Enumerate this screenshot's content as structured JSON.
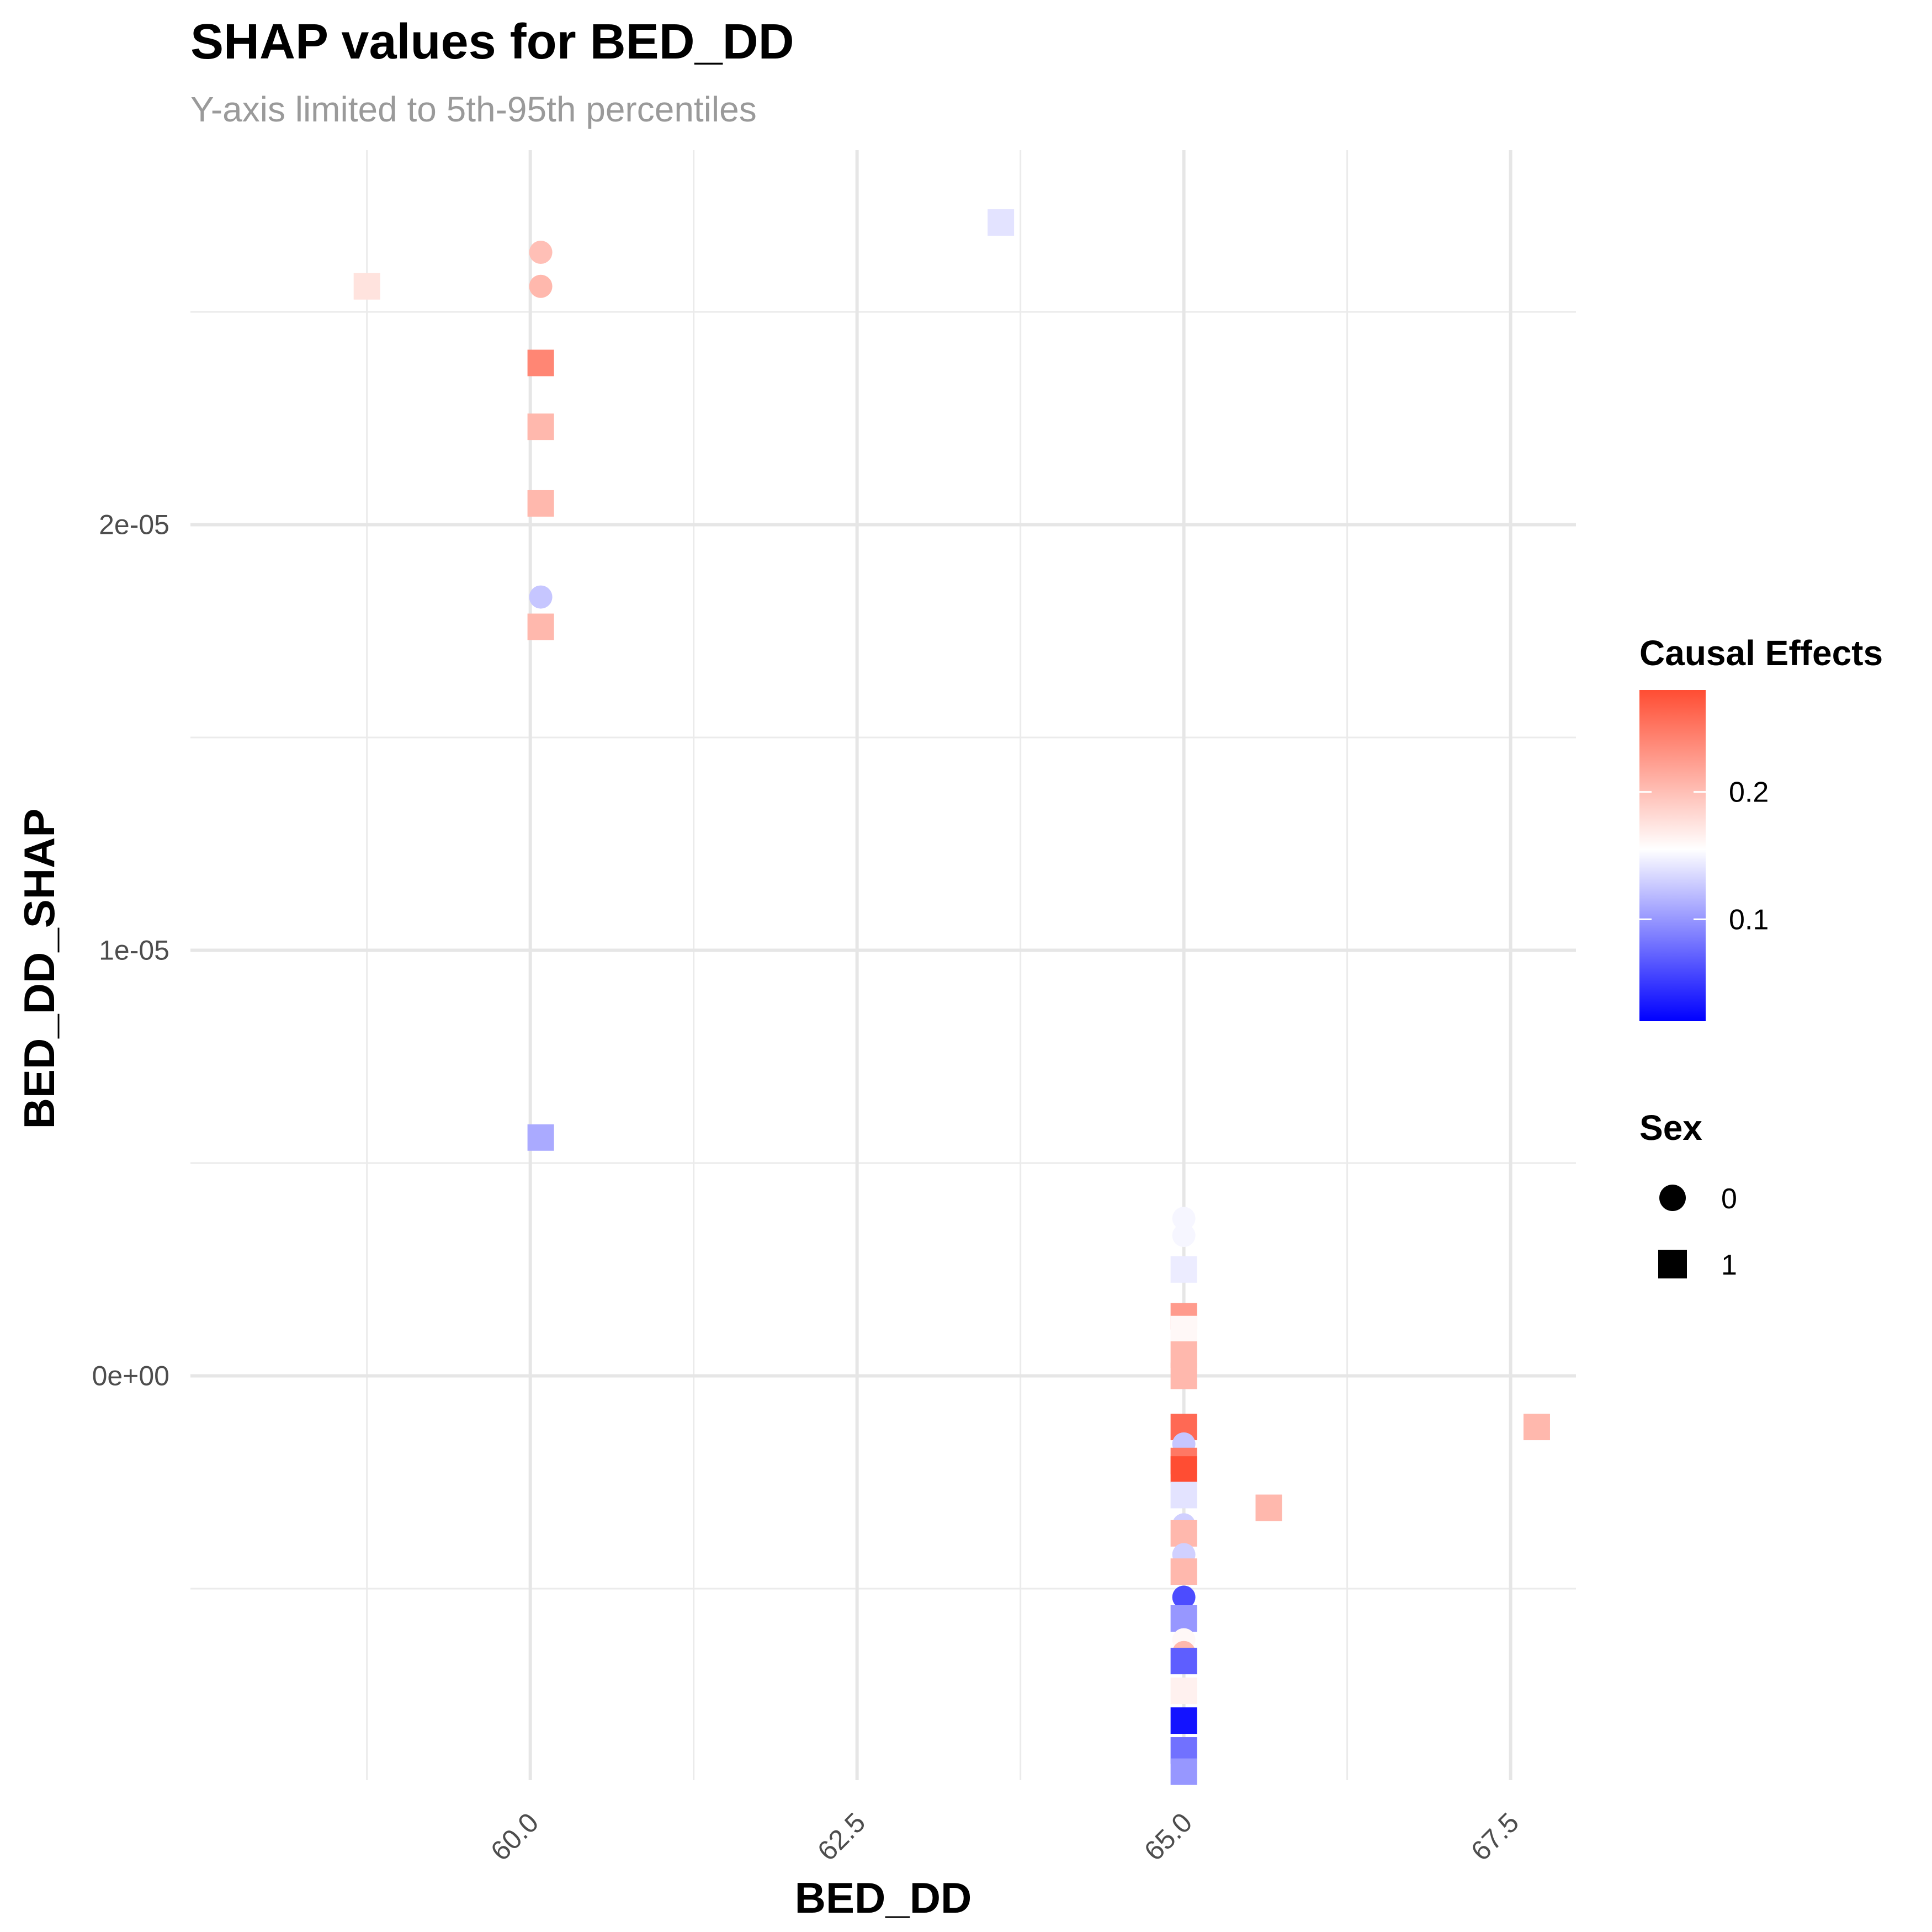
{
  "chart_data": {
    "type": "scatter",
    "title": "SHAP values for BED_DD",
    "subtitle": "Y-axis limited to 5th-95th percentiles",
    "xlabel": "BED_DD",
    "ylabel": "BED_DD_SHAP",
    "xlim": [
      57.4,
      68.0
    ],
    "ylim": [
      -9.5e-06,
      2.88e-05
    ],
    "x_ticks": [
      {
        "value": 60.0,
        "label": "60.0"
      },
      {
        "value": 62.5,
        "label": "62.5"
      },
      {
        "value": 65.0,
        "label": "65.0"
      },
      {
        "value": 67.5,
        "label": "67.5"
      }
    ],
    "x_minor": [
      58.75,
      61.25,
      63.75,
      66.25
    ],
    "y_ticks": [
      {
        "value": 0,
        "label": "0e+00"
      },
      {
        "value": 1e-05,
        "label": "1e-05"
      },
      {
        "value": 2e-05,
        "label": "2e-05"
      }
    ],
    "y_minor": [
      -5e-06,
      5e-06,
      1.5e-05,
      2.5e-05
    ],
    "grid": true,
    "color_legend": {
      "title": "Causal Effects",
      "min": 0.02,
      "mid": 0.155,
      "max": 0.28,
      "low_color": "#0000ff",
      "mid_color": "#ffffff",
      "high_color": "#ff4d33",
      "ticks": [
        {
          "value": 0.2,
          "label": "0.2"
        },
        {
          "value": 0.1,
          "label": "0.1"
        }
      ]
    },
    "shape_legend": {
      "title": "Sex",
      "entries": [
        {
          "label": "0",
          "shape": "circle"
        },
        {
          "label": "1",
          "shape": "square"
        }
      ]
    },
    "points": [
      {
        "x": 58.75,
        "y": 2.56e-05,
        "sex": 1,
        "effect": 0.175
      },
      {
        "x": 60.08,
        "y": 2.64e-05,
        "sex": 0,
        "effect": 0.2
      },
      {
        "x": 60.08,
        "y": 2.56e-05,
        "sex": 0,
        "effect": 0.205
      },
      {
        "x": 60.08,
        "y": 2.38e-05,
        "sex": 1,
        "effect": 0.24
      },
      {
        "x": 60.08,
        "y": 2.23e-05,
        "sex": 1,
        "effect": 0.205
      },
      {
        "x": 60.08,
        "y": 2.05e-05,
        "sex": 1,
        "effect": 0.205
      },
      {
        "x": 60.08,
        "y": 1.83e-05,
        "sex": 0,
        "effect": 0.125
      },
      {
        "x": 60.08,
        "y": 1.76e-05,
        "sex": 1,
        "effect": 0.205
      },
      {
        "x": 60.08,
        "y": 5.6e-06,
        "sex": 1,
        "effect": 0.11
      },
      {
        "x": 63.6,
        "y": 2.71e-05,
        "sex": 1,
        "effect": 0.14
      },
      {
        "x": 65.0,
        "y": 3.7e-06,
        "sex": 0,
        "effect": 0.15
      },
      {
        "x": 65.0,
        "y": 3.3e-06,
        "sex": 0,
        "effect": 0.15
      },
      {
        "x": 65.0,
        "y": 2.5e-06,
        "sex": 1,
        "effect": 0.145
      },
      {
        "x": 65.0,
        "y": 1.4e-06,
        "sex": 1,
        "effect": 0.225
      },
      {
        "x": 65.0,
        "y": 1.1e-06,
        "sex": 1,
        "effect": 0.16
      },
      {
        "x": 65.0,
        "y": 5e-07,
        "sex": 1,
        "effect": 0.205
      },
      {
        "x": 65.0,
        "y": 0.0,
        "sex": 1,
        "effect": 0.205
      },
      {
        "x": 65.0,
        "y": -1.2e-06,
        "sex": 1,
        "effect": 0.26
      },
      {
        "x": 65.0,
        "y": -1.6e-06,
        "sex": 0,
        "effect": 0.125
      },
      {
        "x": 65.0,
        "y": -2e-06,
        "sex": 1,
        "effect": 0.25
      },
      {
        "x": 65.0,
        "y": -2.2e-06,
        "sex": 1,
        "effect": 0.28
      },
      {
        "x": 65.0,
        "y": -2.8e-06,
        "sex": 1,
        "effect": 0.14
      },
      {
        "x": 65.0,
        "y": -3.5e-06,
        "sex": 0,
        "effect": 0.13
      },
      {
        "x": 65.0,
        "y": -3.7e-06,
        "sex": 1,
        "effect": 0.205
      },
      {
        "x": 65.0,
        "y": -4.2e-06,
        "sex": 0,
        "effect": 0.13
      },
      {
        "x": 65.0,
        "y": -4.6e-06,
        "sex": 1,
        "effect": 0.205
      },
      {
        "x": 65.0,
        "y": -5.2e-06,
        "sex": 0,
        "effect": 0.06
      },
      {
        "x": 65.0,
        "y": -5.7e-06,
        "sex": 1,
        "effect": 0.1
      },
      {
        "x": 65.0,
        "y": -6.2e-06,
        "sex": 0,
        "effect": 0.16
      },
      {
        "x": 65.0,
        "y": -6.5e-06,
        "sex": 0,
        "effect": 0.205
      },
      {
        "x": 65.0,
        "y": -6.7e-06,
        "sex": 1,
        "effect": 0.07
      },
      {
        "x": 65.0,
        "y": -7.4e-06,
        "sex": 1,
        "effect": 0.165
      },
      {
        "x": 65.0,
        "y": -8.1e-06,
        "sex": 1,
        "effect": 0.03
      },
      {
        "x": 65.0,
        "y": -8.8e-06,
        "sex": 1,
        "effect": 0.08
      },
      {
        "x": 65.0,
        "y": -9.3e-06,
        "sex": 1,
        "effect": 0.1
      },
      {
        "x": 65.65,
        "y": -3.1e-06,
        "sex": 1,
        "effect": 0.205
      },
      {
        "x": 67.7,
        "y": -1.2e-06,
        "sex": 1,
        "effect": 0.205
      }
    ]
  }
}
